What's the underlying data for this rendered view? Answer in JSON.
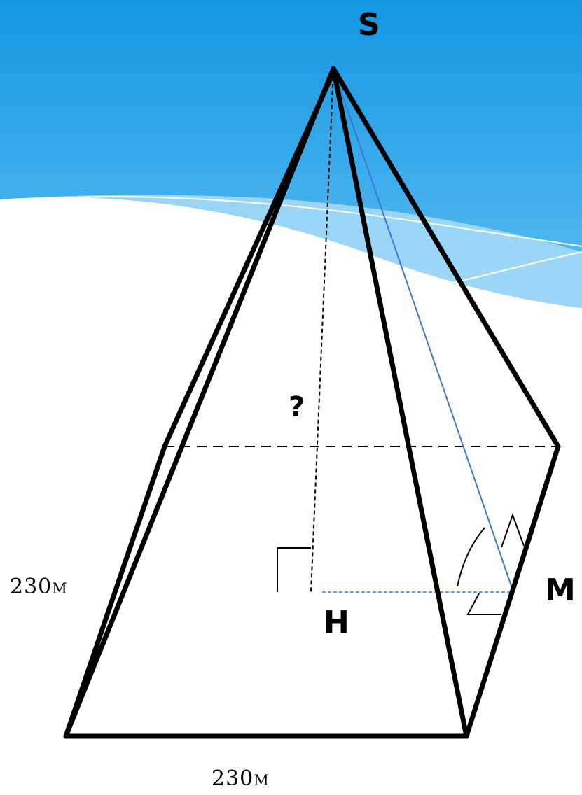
{
  "labels": {
    "apex": "S",
    "foot": "H",
    "midpoint": "M",
    "height_unknown": "?",
    "side_left": "230m",
    "side_bottom": "230m"
  },
  "colors": {
    "background_top": "#1496e2",
    "background_mid": "#5bbdf2",
    "wave_light": "#a9dcf8",
    "edge": "#000000",
    "apothem": "#3a78d4"
  }
}
